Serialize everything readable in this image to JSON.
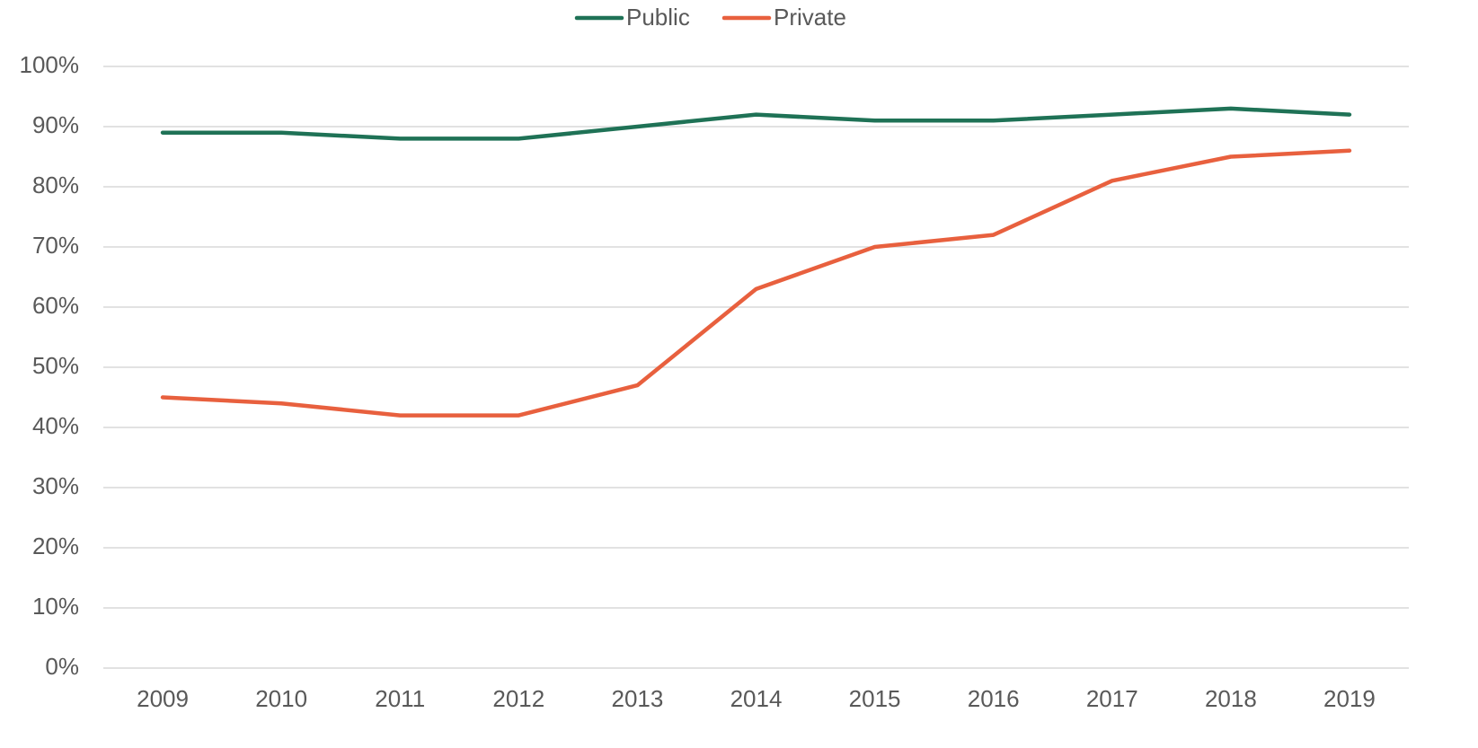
{
  "chart_data": {
    "type": "line",
    "categories": [
      "2009",
      "2010",
      "2011",
      "2012",
      "2013",
      "2014",
      "2015",
      "2016",
      "2017",
      "2018",
      "2019"
    ],
    "series": [
      {
        "name": "Public",
        "color": "#1f7256",
        "values": [
          89,
          89,
          88,
          88,
          90,
          92,
          91,
          91,
          92,
          93,
          92
        ]
      },
      {
        "name": "Private",
        "color": "#e8603e",
        "values": [
          45,
          44,
          42,
          42,
          47,
          63,
          70,
          72,
          81,
          85,
          86
        ]
      }
    ],
    "ylim": [
      0,
      100
    ],
    "yticks": [
      {
        "value": 0,
        "label": "0%"
      },
      {
        "value": 10,
        "label": "10%"
      },
      {
        "value": 20,
        "label": "20%"
      },
      {
        "value": 30,
        "label": "30%"
      },
      {
        "value": 40,
        "label": "40%"
      },
      {
        "value": 50,
        "label": "50%"
      },
      {
        "value": 60,
        "label": "60%"
      },
      {
        "value": 70,
        "label": "70%"
      },
      {
        "value": 80,
        "label": "80%"
      },
      {
        "value": 90,
        "label": "90%"
      },
      {
        "value": 100,
        "label": "100%"
      }
    ],
    "grid": true,
    "legend": "top"
  }
}
